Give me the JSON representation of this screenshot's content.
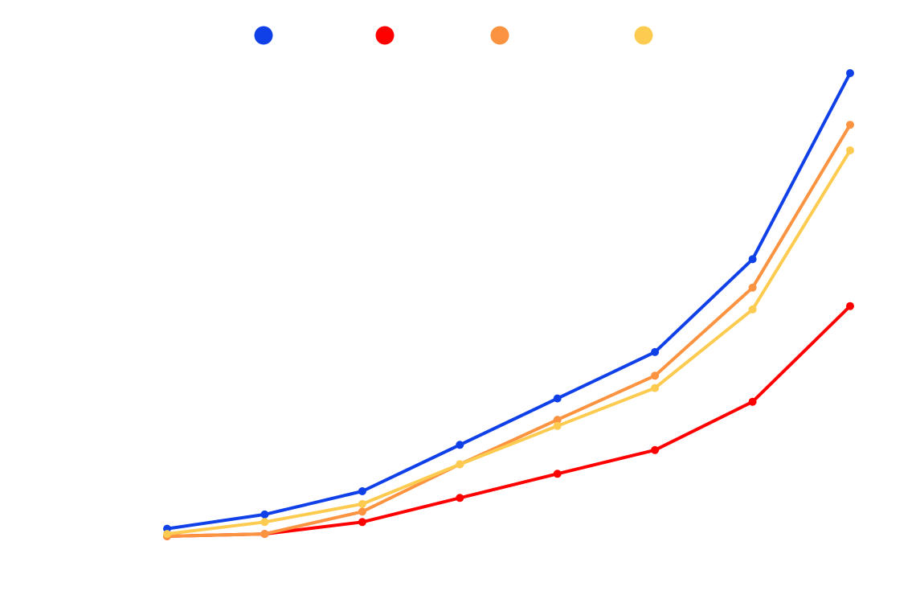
{
  "chart_data": {
    "type": "line",
    "title": "",
    "xlabel": "",
    "ylabel": "",
    "x": [
      1,
      2,
      3,
      4,
      5,
      6,
      7,
      8
    ],
    "ylim": [
      0,
      100
    ],
    "grid": false,
    "legend_placement": "top",
    "series": [
      {
        "color": "#1040e8",
        "values": [
          1.6,
          4.6,
          9.5,
          19.3,
          29.1,
          38.9,
          58.5,
          97.8
        ]
      },
      {
        "color": "#ff0000",
        "values": [
          0.0,
          0.5,
          3.0,
          8.1,
          13.2,
          18.2,
          28.4,
          48.6
        ]
      },
      {
        "color": "#fb9340",
        "values": [
          0.0,
          0.5,
          5.2,
          15.2,
          24.6,
          33.9,
          52.5,
          86.9
        ]
      },
      {
        "color": "#fdcb50",
        "values": [
          0.5,
          3.0,
          6.8,
          15.2,
          23.3,
          31.3,
          47.9,
          81.5
        ]
      }
    ]
  }
}
